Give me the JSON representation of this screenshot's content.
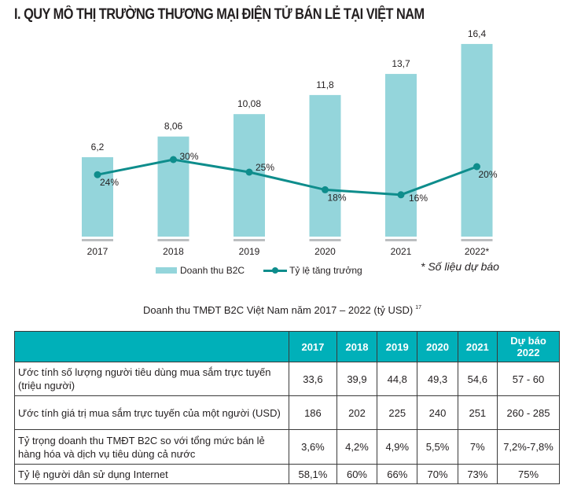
{
  "title": "I. QUY MÔ THỊ TRƯỜNG THƯƠNG MẠI ĐIỆN TỬ BÁN LẺ TẠI VIỆT NAM",
  "colors": {
    "bar": "#94d5db",
    "line": "#0e8d8c",
    "baseline": "#bcbec0",
    "header": "#00b0b9"
  },
  "chart_data": {
    "type": "bar",
    "title": "Doanh thu TMĐT B2C Việt Nam năm 2017 – 2022 (tỷ USD)",
    "categories": [
      "2017",
      "2018",
      "2019",
      "2020",
      "2021",
      "2022*"
    ],
    "series": [
      {
        "name": "Doanh thu B2C",
        "type": "bar",
        "values": [
          6.2,
          8.06,
          10.08,
          11.8,
          13.7,
          16.4
        ],
        "labels": [
          "6,2",
          "8,06",
          "10,08",
          "11,8",
          "13,7",
          "16,4"
        ]
      },
      {
        "name": "Tỷ lệ tăng trưởng",
        "type": "line",
        "values": [
          24,
          30,
          25,
          18,
          16,
          20
        ],
        "labels": [
          "24%",
          "30%",
          "25%",
          "18%",
          "16%",
          "20%"
        ]
      }
    ],
    "xlabel": "",
    "ylabel": "",
    "legend": "bottom",
    "grid": false
  },
  "legend": {
    "bar_label": "Doanh thu B2C",
    "line_label": "Tỷ lệ tăng trưởng"
  },
  "note": "* Số liệu dự báo",
  "caption": {
    "text": "Doanh thu TMĐT B2C Việt Nam năm 2017 – 2022 (tỷ USD)",
    "footnote": "17"
  },
  "table": {
    "headers": [
      "",
      "2017",
      "2018",
      "2019",
      "2020",
      "2021",
      "Dự báo 2022"
    ],
    "rows": [
      {
        "label": "Ước tính số lượng người tiêu dùng mua sắm trực tuyến (triệu người)",
        "values": [
          "33,6",
          "39,9",
          "44,8",
          "49,3",
          "54,6",
          "57 - 60"
        ]
      },
      {
        "label": "Ước tính giá trị mua sắm trực tuyến của một người (USD)",
        "values": [
          "186",
          "202",
          "225",
          "240",
          "251",
          "260 - 285"
        ]
      },
      {
        "label": "Tỷ trọng doanh thu TMĐT B2C so với tổng mức bán lẻ hàng hóa và dịch vụ tiêu dùng cả nước",
        "values": [
          "3,6%",
          "4,2%",
          "4,9%",
          "5,5%",
          "7%",
          "7,2%-7,8%"
        ]
      },
      {
        "label": "Tỷ lệ người dân sử dụng Internet",
        "values": [
          "58,1%",
          "60%",
          "66%",
          "70%",
          "73%",
          "75%"
        ]
      }
    ]
  }
}
